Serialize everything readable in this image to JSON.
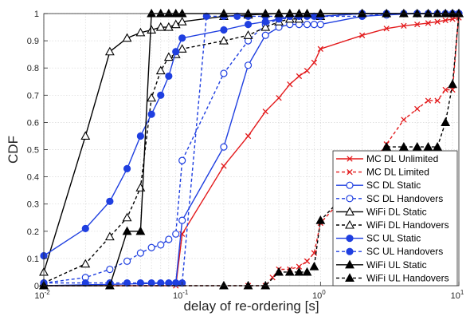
{
  "chart_data": {
    "type": "line",
    "xlabel": "delay of re-ordering [s]",
    "ylabel": "CDF",
    "xscale": "log",
    "xlim": [
      0.01,
      10
    ],
    "ylim": [
      0,
      1
    ],
    "x_ticks": [
      {
        "value": 0.01,
        "base": "10",
        "exp": "-2"
      },
      {
        "value": 0.1,
        "base": "10",
        "exp": "-1"
      },
      {
        "value": 1,
        "base": "10",
        "exp": "0"
      },
      {
        "value": 10,
        "base": "10",
        "exp": "1"
      }
    ],
    "y_ticks": [
      "0",
      "0.1",
      "0.2",
      "0.3",
      "0.4",
      "0.5",
      "0.6",
      "0.7",
      "0.8",
      "0.9",
      "1"
    ],
    "grid": true,
    "legend_position": "bottom-right",
    "series": [
      {
        "name": "MC DL Unlimited",
        "color": "#e31a1c",
        "dash": false,
        "marker": "x",
        "x": [
          0.01,
          0.09,
          0.1,
          0.2,
          0.3,
          0.4,
          0.5,
          0.6,
          0.7,
          0.8,
          0.9,
          1,
          2,
          3,
          4,
          5,
          6,
          7,
          8,
          9,
          10
        ],
        "y": [
          0,
          0,
          0.19,
          0.44,
          0.55,
          0.64,
          0.69,
          0.74,
          0.77,
          0.79,
          0.82,
          0.87,
          0.92,
          0.945,
          0.955,
          0.96,
          0.965,
          0.97,
          0.975,
          0.98,
          0.985
        ]
      },
      {
        "name": "MC DL Limited",
        "color": "#e31a1c",
        "dash": true,
        "marker": "x",
        "x": [
          0.01,
          0.3,
          0.4,
          0.45,
          0.5,
          0.6,
          0.7,
          0.8,
          0.9,
          1,
          2,
          3,
          4,
          5,
          6,
          7,
          8,
          9,
          10
        ],
        "y": [
          0,
          0,
          0,
          0.03,
          0.06,
          0.06,
          0.07,
          0.09,
          0.12,
          0.23,
          0.4,
          0.52,
          0.61,
          0.65,
          0.68,
          0.68,
          0.72,
          0.72,
          1
        ]
      },
      {
        "name": "SC DL Static",
        "color": "#1f3fe0",
        "dash": false,
        "marker": "circle-open",
        "x": [
          0.01,
          0.09,
          0.1,
          0.2,
          0.3,
          0.4,
          0.5,
          0.6,
          0.7,
          0.8,
          0.9,
          1,
          2,
          3,
          5,
          10
        ],
        "y": [
          0,
          0.01,
          0.24,
          0.51,
          0.81,
          0.92,
          0.95,
          0.96,
          0.96,
          0.96,
          0.96,
          0.96,
          0.99,
          0.995,
          1,
          1
        ]
      },
      {
        "name": "SC DL Handovers",
        "color": "#1f3fe0",
        "dash": true,
        "marker": "circle-open",
        "x": [
          0.01,
          0.02,
          0.03,
          0.04,
          0.05,
          0.06,
          0.07,
          0.08,
          0.09,
          0.1,
          0.2,
          0.3,
          0.4,
          0.5,
          1,
          2,
          10
        ],
        "y": [
          0.01,
          0.03,
          0.06,
          0.09,
          0.12,
          0.14,
          0.15,
          0.17,
          0.19,
          0.46,
          0.78,
          0.9,
          0.96,
          0.98,
          0.99,
          1,
          1
        ]
      },
      {
        "name": "WiFi DL Static",
        "color": "#000000",
        "dash": false,
        "marker": "triangle-open",
        "x": [
          0.01,
          0.02,
          0.03,
          0.04,
          0.05,
          0.06,
          0.07,
          0.08,
          0.09,
          0.1,
          0.2,
          0.3,
          0.5,
          1,
          10
        ],
        "y": [
          0.05,
          0.55,
          0.86,
          0.91,
          0.93,
          0.94,
          0.95,
          0.95,
          0.96,
          0.97,
          0.99,
          0.995,
          1,
          1,
          1
        ]
      },
      {
        "name": "WiFi DL Handovers",
        "color": "#000000",
        "dash": true,
        "marker": "triangle-open",
        "x": [
          0.01,
          0.02,
          0.03,
          0.04,
          0.05,
          0.06,
          0.07,
          0.08,
          0.09,
          0.1,
          0.2,
          0.3,
          0.4,
          0.5,
          0.6,
          0.7,
          1,
          2,
          10
        ],
        "y": [
          0.01,
          0.08,
          0.18,
          0.25,
          0.36,
          0.69,
          0.79,
          0.84,
          0.85,
          0.87,
          0.9,
          0.92,
          0.95,
          0.97,
          0.98,
          0.98,
          0.99,
          1,
          1
        ]
      },
      {
        "name": "SC UL Static",
        "color": "#1f3fe0",
        "dash": false,
        "marker": "circle-filled",
        "x": [
          0.01,
          0.02,
          0.03,
          0.04,
          0.05,
          0.06,
          0.07,
          0.08,
          0.09,
          0.1,
          0.2,
          0.3,
          0.4,
          0.5,
          0.6,
          0.7,
          1,
          2,
          3,
          5,
          10
        ],
        "y": [
          0.11,
          0.21,
          0.31,
          0.43,
          0.55,
          0.63,
          0.7,
          0.77,
          0.86,
          0.91,
          0.94,
          0.96,
          0.97,
          0.98,
          0.99,
          0.99,
          0.99,
          1,
          1,
          1,
          1
        ]
      },
      {
        "name": "SC UL Handovers",
        "color": "#1f3fe0",
        "dash": true,
        "marker": "circle-filled",
        "x": [
          0.01,
          0.02,
          0.03,
          0.04,
          0.05,
          0.06,
          0.07,
          0.08,
          0.09,
          0.1,
          0.15,
          0.2,
          0.25,
          0.3,
          0.4,
          0.5,
          0.6,
          0.7,
          0.8,
          0.9,
          1,
          2,
          3,
          4,
          5,
          6,
          7,
          8,
          9,
          10
        ],
        "y": [
          0.01,
          0.01,
          0.01,
          0.01,
          0.01,
          0.01,
          0.01,
          0.01,
          0.01,
          0.01,
          0.99,
          0.99,
          0.99,
          0.99,
          0.99,
          0.99,
          0.99,
          0.99,
          0.99,
          0.99,
          0.99,
          0.99,
          1,
          1,
          1,
          1,
          1,
          1,
          1,
          1
        ]
      },
      {
        "name": "WiFi UL Static",
        "color": "#000000",
        "dash": false,
        "marker": "triangle-filled",
        "x": [
          0.01,
          0.03,
          0.04,
          0.05,
          0.06,
          0.07,
          0.08,
          0.09,
          0.1,
          0.2,
          0.3,
          0.4,
          0.5,
          0.6,
          0.7,
          0.8,
          1,
          2,
          3,
          4,
          5,
          6,
          7,
          8,
          9,
          10
        ],
        "y": [
          0,
          0,
          0.2,
          0.2,
          1,
          1,
          1,
          1,
          1,
          1,
          1,
          1,
          1,
          1,
          1,
          1,
          1,
          1,
          1,
          1,
          1,
          1,
          1,
          1,
          1,
          1
        ]
      },
      {
        "name": "WiFi UL Handovers",
        "color": "#000000",
        "dash": true,
        "marker": "triangle-filled",
        "x": [
          0.01,
          0.2,
          0.3,
          0.4,
          0.5,
          0.6,
          0.7,
          0.8,
          0.9,
          1,
          2,
          3,
          4,
          5,
          6,
          7,
          8,
          9,
          10
        ],
        "y": [
          0,
          0,
          0,
          0,
          0.05,
          0.05,
          0.05,
          0.05,
          0.07,
          0.24,
          0.4,
          0.51,
          0.51,
          0.51,
          0.51,
          0.51,
          0.6,
          0.74,
          1
        ]
      }
    ]
  }
}
